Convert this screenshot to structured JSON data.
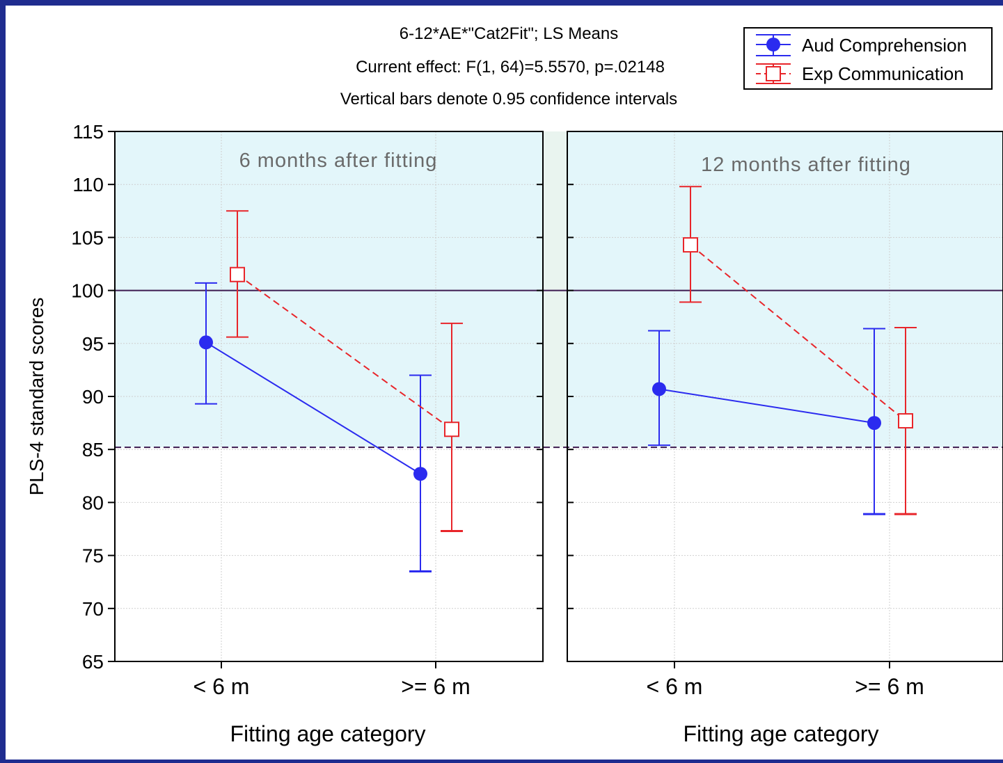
{
  "colors": {
    "frame": "#1f2c8f",
    "background": "#ffffff",
    "shaded_band": "#e3f6fa",
    "gap_band": "#e9f4ef",
    "grid": "#cfcfcf",
    "ref_line": "#3d1a4f",
    "aud": "#2b2bef",
    "exp": "#e8252a",
    "panel_label": "#6a6a6a"
  },
  "header": {
    "line1": "6-12*AE*\"Cat2Fit\"; LS Means",
    "line2": "Current effect: F(1, 64)=5.5570, p=.02148",
    "line3": "Vertical bars denote 0.95 confidence intervals"
  },
  "legend": {
    "items": [
      {
        "label": "Aud Comprehension",
        "series": "aud"
      },
      {
        "label": "Exp Communication",
        "series": "exp"
      }
    ]
  },
  "chart_data": {
    "type": "line",
    "ylabel": "PLS-4 standard scores",
    "ylim": [
      65,
      115
    ],
    "yticks": [
      65,
      70,
      75,
      80,
      85,
      90,
      95,
      100,
      105,
      110,
      115
    ],
    "grid": true,
    "legend_position": "top-right",
    "reference_lines": {
      "solid": 100,
      "dashed": 85.2
    },
    "shaded_band": [
      85.2,
      115
    ],
    "panels": [
      {
        "title": "6 months after fitting",
        "xlabel": "Fitting age category",
        "categories": [
          "< 6 m",
          ">= 6 m"
        ],
        "series": [
          {
            "name": "Aud Comprehension",
            "values": [
              95.1,
              82.7
            ],
            "ci_low": [
              89.3,
              73.5
            ],
            "ci_high": [
              100.7,
              92.0
            ]
          },
          {
            "name": "Exp Communication",
            "values": [
              101.5,
              86.9
            ],
            "ci_low": [
              95.6,
              77.3
            ],
            "ci_high": [
              107.5,
              96.9
            ]
          }
        ]
      },
      {
        "title": "12 months after fitting",
        "xlabel": "Fitting age category",
        "categories": [
          "< 6 m",
          ">= 6 m"
        ],
        "series": [
          {
            "name": "Aud Comprehension",
            "values": [
              90.7,
              87.5
            ],
            "ci_low": [
              85.4,
              78.9
            ],
            "ci_high": [
              96.2,
              96.4
            ]
          },
          {
            "name": "Exp Communication",
            "values": [
              104.3,
              87.7
            ],
            "ci_low": [
              98.9,
              78.9
            ],
            "ci_high": [
              109.8,
              96.5
            ]
          }
        ]
      }
    ]
  }
}
